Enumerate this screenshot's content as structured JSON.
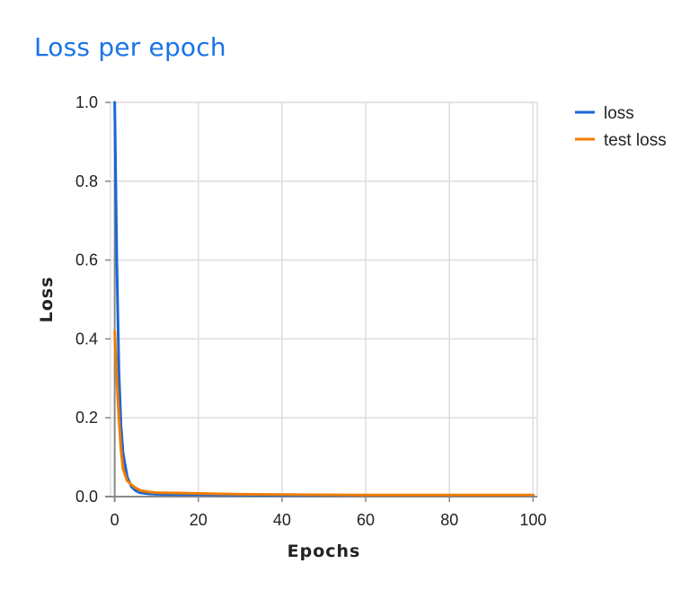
{
  "page": {
    "title": "Loss per epoch"
  },
  "chart_data": {
    "type": "line",
    "title": "Loss per epoch",
    "xlabel": "Epochs",
    "ylabel": "Loss",
    "xlim": [
      -1,
      101
    ],
    "ylim": [
      0,
      1.0
    ],
    "x_ticks": [
      0,
      20,
      40,
      60,
      80,
      100
    ],
    "y_ticks": [
      0.0,
      0.2,
      0.4,
      0.6,
      0.8,
      1.0
    ],
    "y_tick_labels": [
      "0.0",
      "0.2",
      "0.4",
      "0.6",
      "0.8",
      "1.0"
    ],
    "grid": true,
    "legend_position": "top-right",
    "series": [
      {
        "name": "loss",
        "color": "#1a66d6",
        "x": [
          0,
          0.5,
          1,
          1.5,
          2,
          3,
          4,
          5,
          6,
          8,
          10,
          15,
          20,
          30,
          40,
          60,
          80,
          100
        ],
        "y": [
          1.0,
          0.6,
          0.32,
          0.18,
          0.11,
          0.05,
          0.025,
          0.015,
          0.01,
          0.007,
          0.006,
          0.005,
          0.005,
          0.004,
          0.003,
          0.003,
          0.003,
          0.003
        ]
      },
      {
        "name": "test loss",
        "color": "#f07d00",
        "x": [
          0,
          0.5,
          1,
          1.5,
          2,
          3,
          4,
          5,
          6,
          8,
          10,
          15,
          20,
          30,
          40,
          60,
          80,
          100
        ],
        "y": [
          0.42,
          0.3,
          0.2,
          0.12,
          0.07,
          0.04,
          0.03,
          0.022,
          0.016,
          0.012,
          0.01,
          0.009,
          0.008,
          0.006,
          0.005,
          0.004,
          0.004,
          0.004
        ]
      }
    ]
  }
}
